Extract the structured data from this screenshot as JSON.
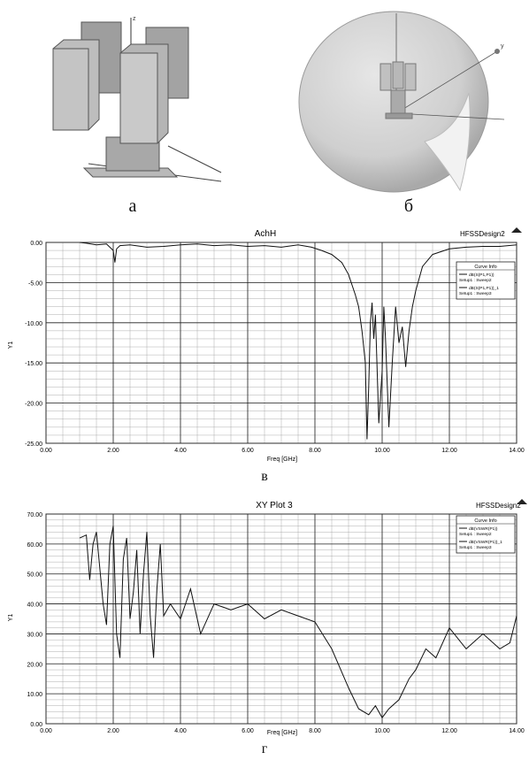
{
  "figure": {
    "labels": [
      "а",
      "б",
      "в",
      "г"
    ]
  },
  "chart_data": [
    {
      "type": "line",
      "title": "AchH",
      "badge": "HFSSDesign2",
      "xlabel": "Freq [GHz]",
      "ylabel": "Y1",
      "xlim": [
        0,
        14
      ],
      "ylim": [
        -25,
        0
      ],
      "xticks": [
        "0.00",
        "2.00",
        "4.00",
        "6.00",
        "8.00",
        "10.00",
        "12.00",
        "14.00"
      ],
      "yticks": [
        "0.00",
        "-5.00",
        "-10.00",
        "-15.00",
        "-20.00",
        "-25.00"
      ],
      "grid": true,
      "legend": {
        "title": "Curve Info",
        "entries": [
          [
            "dB(S(P1,P1))",
            "Setup1 : Sweep2"
          ],
          [
            "dB(S(P1,P1))_1",
            "Setup1 : Sweep3"
          ]
        ],
        "placement": "right"
      },
      "series": [
        {
          "name": "dB(S(P1,P1))",
          "x": [
            1.0,
            1.2,
            1.5,
            1.8,
            2.0,
            2.05,
            2.1,
            2.2,
            2.5,
            3.0,
            3.5,
            4.0,
            4.5,
            5.0,
            5.5,
            6.0,
            6.5,
            7.0,
            7.5,
            7.9,
            8.2,
            8.5,
            8.8,
            9.0,
            9.2,
            9.3,
            9.4,
            9.5,
            9.55,
            9.6,
            9.65,
            9.7,
            9.75,
            9.8,
            9.9,
            10.0,
            10.05,
            10.1,
            10.2,
            10.3,
            10.4,
            10.5,
            10.6,
            10.7,
            10.8,
            10.9,
            11.0,
            11.2,
            11.5,
            12.0,
            12.5,
            13.0,
            13.5,
            14.0
          ],
          "y": [
            0.0,
            -0.1,
            -0.3,
            -0.2,
            -1.0,
            -2.5,
            -0.8,
            -0.4,
            -0.3,
            -0.6,
            -0.5,
            -0.3,
            -0.2,
            -0.4,
            -0.3,
            -0.5,
            -0.4,
            -0.6,
            -0.3,
            -0.6,
            -1.0,
            -1.5,
            -2.5,
            -4.0,
            -6.5,
            -8.0,
            -11.0,
            -15.0,
            -24.5,
            -18.0,
            -10.0,
            -7.5,
            -12.0,
            -9.0,
            -22.5,
            -16.0,
            -8.0,
            -12.0,
            -23.0,
            -15.0,
            -8.0,
            -12.5,
            -10.5,
            -15.5,
            -11.0,
            -8.0,
            -6.0,
            -3.0,
            -1.5,
            -0.8,
            -0.6,
            -0.5,
            -0.5,
            -0.3
          ]
        }
      ]
    },
    {
      "type": "line",
      "title": "XY Plot 3",
      "badge": "HFSSDesign2",
      "xlabel": "Freq [GHz]",
      "ylabel": "Y1",
      "xlim": [
        0,
        14
      ],
      "ylim": [
        0,
        70
      ],
      "xticks": [
        "0.00",
        "2.00",
        "4.00",
        "6.00",
        "8.00",
        "10.00",
        "12.00",
        "14.00"
      ],
      "yticks": [
        "70.00",
        "60.00",
        "50.00",
        "40.00",
        "30.00",
        "20.00",
        "10.00",
        "0.00"
      ],
      "grid": true,
      "legend": {
        "title": "Curve Info",
        "entries": [
          [
            "dB(VSWR(P1))",
            "Setup1 : Sweep2"
          ],
          [
            "dB(VSWR(P1))_1",
            "Setup1 : Sweep3"
          ]
        ],
        "placement": "top-right"
      },
      "series": [
        {
          "name": "dB(VSWR(P1))",
          "x": [
            1.0,
            1.2,
            1.3,
            1.4,
            1.5,
            1.6,
            1.7,
            1.8,
            1.9,
            2.0,
            2.1,
            2.2,
            2.3,
            2.4,
            2.5,
            2.6,
            2.7,
            2.8,
            2.9,
            3.0,
            3.1,
            3.2,
            3.3,
            3.4,
            3.5,
            3.7,
            4.0,
            4.3,
            4.6,
            5.0,
            5.5,
            6.0,
            6.5,
            7.0,
            7.5,
            8.0,
            8.5,
            9.0,
            9.3,
            9.6,
            9.8,
            10.0,
            10.2,
            10.5,
            10.8,
            11.0,
            11.3,
            11.6,
            12.0,
            12.5,
            13.0,
            13.5,
            13.8,
            14.0
          ],
          "y": [
            62.0,
            63.0,
            48.0,
            60.0,
            64.0,
            52.0,
            40.0,
            33.0,
            60.0,
            66.0,
            30.0,
            22.0,
            55.0,
            62.0,
            35.0,
            44.0,
            58.0,
            30.0,
            50.0,
            64.0,
            36.0,
            22.0,
            45.0,
            60.0,
            36.0,
            40.0,
            35.0,
            45.0,
            30.0,
            40.0,
            38.0,
            40.0,
            35.0,
            38.0,
            36.0,
            34.0,
            25.0,
            12.0,
            5.0,
            3.0,
            6.0,
            2.0,
            5.0,
            8.0,
            15.0,
            18.0,
            25.0,
            22.0,
            32.0,
            25.0,
            30.0,
            25.0,
            27.0,
            36.0
          ]
        }
      ]
    }
  ]
}
